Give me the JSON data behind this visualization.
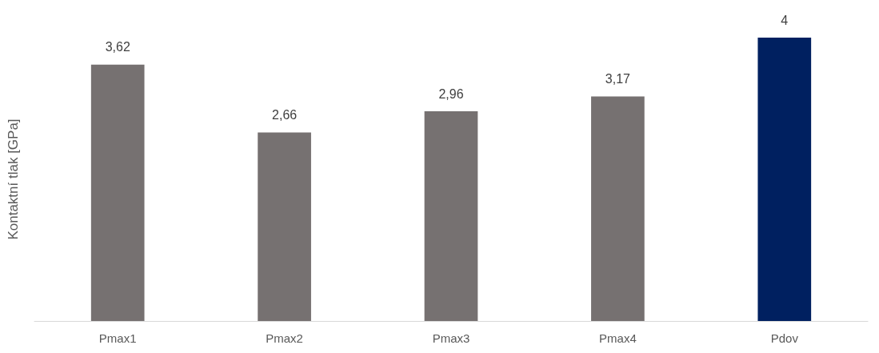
{
  "chart_data": {
    "type": "bar",
    "ylabel": "Kontaktní tlak [GPa]",
    "categories": [
      "Pmax1",
      "Pmax2",
      "Pmax3",
      "Pmax4",
      "Pdov"
    ],
    "values": [
      3.62,
      2.66,
      2.96,
      3.17,
      4
    ],
    "colors": [
      "#767171",
      "#767171",
      "#767171",
      "#767171",
      "#002060"
    ],
    "value_labels": [
      "3,62",
      "2,66",
      "2,96",
      "3,17",
      "4"
    ],
    "ylim": [
      0,
      4
    ],
    "tick_labels": "x",
    "grid": false
  }
}
